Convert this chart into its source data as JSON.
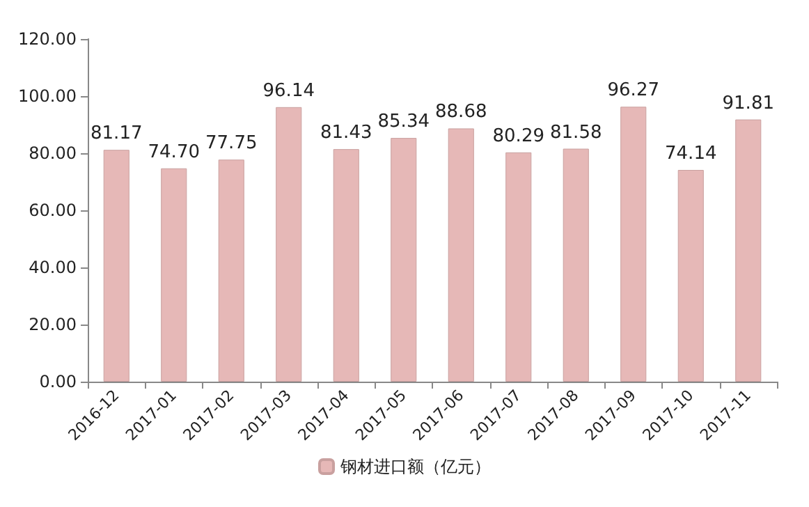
{
  "chart_data": {
    "type": "bar",
    "categories": [
      "2016-12",
      "2017-01",
      "2017-02",
      "2017-03",
      "2017-04",
      "2017-05",
      "2017-06",
      "2017-07",
      "2017-08",
      "2017-09",
      "2017-10",
      "2017-11"
    ],
    "series": [
      {
        "name": "钢材进口额（亿元）",
        "color": "#e6b8b7",
        "values": [
          81.17,
          74.7,
          77.75,
          96.14,
          81.43,
          85.34,
          88.68,
          80.29,
          81.58,
          96.27,
          74.14,
          91.81
        ],
        "value_labels": [
          "81.17",
          "74.70",
          "77.75",
          "96.14",
          "81.43",
          "85.34",
          "88.68",
          "80.29",
          "81.58",
          "96.27",
          "74.14",
          "91.81"
        ]
      }
    ],
    "ylim": [
      0,
      120
    ],
    "yticks": [
      {
        "value": 0,
        "label": "0.00"
      },
      {
        "value": 20,
        "label": "20.00"
      },
      {
        "value": 40,
        "label": "40.00"
      },
      {
        "value": 60,
        "label": "60.00"
      },
      {
        "value": 80,
        "label": "80.00"
      },
      {
        "value": 100,
        "label": "100.00"
      },
      {
        "value": 120,
        "label": "120.00"
      }
    ],
    "grid": false,
    "legend": "bottom"
  }
}
